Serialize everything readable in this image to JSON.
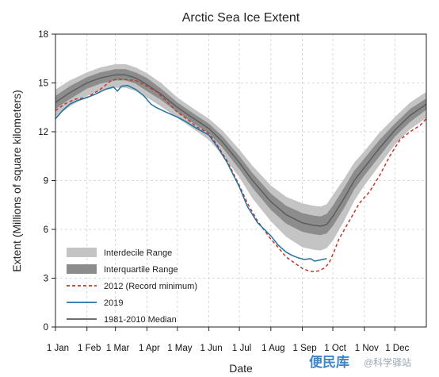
{
  "chart_data": {
    "type": "line",
    "title": "Arctic Sea Ice Extent",
    "xlabel": "Date",
    "ylabel": "Extent (Millions of square kilometers)",
    "xlim": [
      1,
      366
    ],
    "ylim": [
      0,
      18
    ],
    "x_ticks": [
      {
        "label": "1 Jan",
        "day": 1
      },
      {
        "label": "1 Feb",
        "day": 32
      },
      {
        "label": "1 Mar",
        "day": 60
      },
      {
        "label": "1 Apr",
        "day": 91
      },
      {
        "label": "1 May",
        "day": 121
      },
      {
        "label": "1 Jun",
        "day": 152
      },
      {
        "label": "1 Jul",
        "day": 182
      },
      {
        "label": "1 Aug",
        "day": 213
      },
      {
        "label": "1 Sep",
        "day": 244
      },
      {
        "label": "1 Oct",
        "day": 274
      },
      {
        "label": "1 Nov",
        "day": 305
      },
      {
        "label": "1 Dec",
        "day": 335
      }
    ],
    "y_ticks": [
      0,
      3,
      6,
      9,
      12,
      15,
      18
    ],
    "grid": "dashed",
    "legend_position": "bottom-left",
    "x_units": "day of year",
    "median": {
      "name": "1981-2010 Median",
      "color": "#5a5a5a",
      "x": [
        1,
        15,
        32,
        45,
        60,
        70,
        80,
        91,
        105,
        121,
        135,
        152,
        165,
        182,
        195,
        213,
        228,
        244,
        255,
        262,
        268,
        274,
        285,
        295,
        305,
        320,
        335,
        350,
        366
      ],
      "y": [
        13.8,
        14.4,
        15.0,
        15.3,
        15.5,
        15.5,
        15.3,
        14.9,
        14.3,
        13.5,
        12.9,
        12.2,
        11.4,
        10.1,
        9.0,
        7.7,
        6.9,
        6.4,
        6.25,
        6.2,
        6.3,
        6.8,
        7.9,
        9.0,
        9.8,
        11.0,
        12.1,
        13.0,
        13.7
      ]
    },
    "interquartile_range": {
      "name": "Interquartile Range",
      "color": "#8c8c8c",
      "x": [
        1,
        15,
        32,
        45,
        60,
        70,
        80,
        91,
        105,
        121,
        135,
        152,
        165,
        182,
        195,
        213,
        228,
        244,
        255,
        262,
        268,
        274,
        285,
        295,
        305,
        320,
        335,
        350,
        366
      ],
      "upper": [
        14.2,
        14.8,
        15.35,
        15.65,
        15.85,
        15.85,
        15.65,
        15.3,
        14.65,
        13.8,
        13.2,
        12.5,
        11.75,
        10.5,
        9.45,
        8.2,
        7.45,
        7.0,
        6.85,
        6.8,
        6.95,
        7.45,
        8.55,
        9.6,
        10.35,
        11.5,
        12.5,
        13.4,
        14.05
      ],
      "lower": [
        13.4,
        14.0,
        14.65,
        14.95,
        15.15,
        15.15,
        14.95,
        14.5,
        13.95,
        13.2,
        12.6,
        11.9,
        11.05,
        9.7,
        8.55,
        7.2,
        6.35,
        5.85,
        5.7,
        5.65,
        5.75,
        6.2,
        7.3,
        8.45,
        9.3,
        10.5,
        11.7,
        12.6,
        13.35
      ]
    },
    "interdecile_range": {
      "name": "Interdecile Range",
      "color": "#c4c4c4",
      "x": [
        1,
        15,
        32,
        45,
        60,
        70,
        80,
        91,
        105,
        121,
        135,
        152,
        165,
        182,
        195,
        213,
        228,
        244,
        255,
        262,
        268,
        274,
        285,
        295,
        305,
        320,
        335,
        350,
        366
      ],
      "upper": [
        14.6,
        15.15,
        15.65,
        15.95,
        16.15,
        16.15,
        15.95,
        15.6,
        15.0,
        14.1,
        13.5,
        12.8,
        12.1,
        10.9,
        9.9,
        8.7,
        8.0,
        7.6,
        7.45,
        7.4,
        7.55,
        8.1,
        9.1,
        10.1,
        10.8,
        11.95,
        12.9,
        13.8,
        14.45
      ],
      "lower": [
        12.9,
        13.55,
        14.2,
        14.5,
        14.7,
        14.7,
        14.5,
        14.1,
        13.55,
        12.85,
        12.25,
        11.5,
        10.6,
        9.2,
        7.9,
        6.5,
        5.55,
        4.9,
        4.75,
        4.7,
        4.85,
        5.3,
        6.5,
        7.75,
        8.7,
        9.95,
        11.2,
        12.15,
        12.85
      ]
    },
    "series": [
      {
        "name": "2012 (Record minimum)",
        "color": "#c0392b",
        "dash": "dashed",
        "x": [
          1,
          10,
          20,
          32,
          45,
          55,
          62,
          70,
          80,
          91,
          100,
          110,
          121,
          130,
          140,
          152,
          160,
          170,
          182,
          190,
          200,
          213,
          220,
          228,
          236,
          244,
          250,
          255,
          260,
          265,
          270,
          275,
          280,
          290,
          300,
          310,
          320,
          330,
          340,
          350,
          360,
          366
        ],
        "y": [
          13.3,
          13.7,
          14.0,
          14.1,
          14.6,
          15.1,
          15.25,
          15.2,
          15.15,
          14.8,
          14.5,
          13.9,
          13.2,
          12.8,
          12.3,
          11.9,
          11.2,
          10.2,
          8.7,
          7.6,
          6.5,
          5.4,
          4.9,
          4.3,
          3.95,
          3.6,
          3.45,
          3.4,
          3.45,
          3.6,
          3.9,
          4.6,
          5.4,
          6.5,
          7.6,
          8.3,
          9.3,
          10.5,
          11.5,
          12.0,
          12.4,
          12.8
        ]
      },
      {
        "name": "2019",
        "color": "#2471a3",
        "dash": "solid",
        "x": [
          1,
          8,
          15,
          22,
          32,
          40,
          50,
          58,
          62,
          66,
          72,
          80,
          88,
          95,
          100,
          110,
          121,
          130,
          140,
          152,
          160,
          170,
          182,
          190,
          200,
          213,
          220,
          228,
          234,
          240,
          246,
          252,
          256,
          260,
          264,
          268
        ],
        "y": [
          12.8,
          13.3,
          13.7,
          13.9,
          14.1,
          14.3,
          14.6,
          14.75,
          14.5,
          14.8,
          14.85,
          14.6,
          14.2,
          13.7,
          13.5,
          13.2,
          12.9,
          12.6,
          12.2,
          11.8,
          11.1,
          10.1,
          8.6,
          7.4,
          6.4,
          5.6,
          5.05,
          4.6,
          4.4,
          4.25,
          4.15,
          4.2,
          4.05,
          4.1,
          4.15,
          4.2
        ]
      }
    ],
    "legend_entries": [
      "Interdecile Range",
      "Interquartile Range",
      "2012 (Record minimum)",
      "2019",
      "1981-2010 Median"
    ]
  },
  "watermark": {
    "logo_text": "便民库",
    "text": "@科学驿站"
  }
}
